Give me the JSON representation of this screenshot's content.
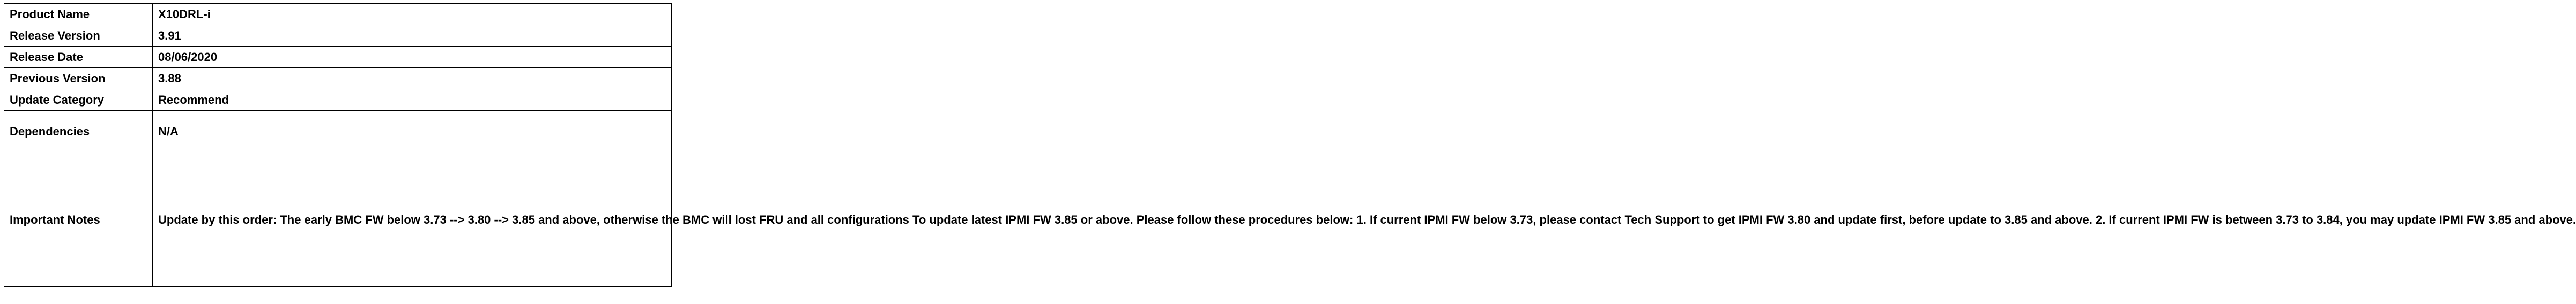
{
  "rows": [
    {
      "label": "Product Name",
      "value": "X10DRL-i"
    },
    {
      "label": "Release Version",
      "value": "3.91"
    },
    {
      "label": "Release Date",
      "value": "08/06/2020"
    },
    {
      "label": "Previous Version",
      "value": "3.88"
    },
    {
      "label": "Update Category",
      "value": "Recommend"
    },
    {
      "label": "Dependencies",
      "value": "N/A"
    },
    {
      "label": "Important Notes",
      "value": "Update by this order: The early BMC FW below 3.73 --> 3.80 --> 3.85 and above, otherwise the BMC will lost FRU and all configurations To update latest IPMI FW 3.85 or above. Please follow these procedures below: 1. If current IPMI FW below 3.73, please contact Tech Support to get IPMI FW 3.80 and update first, before update to 3.85 and above. 2. If current IPMI FW is between 3.73 to 3.84, you may update IPMI FW 3.85 and above."
    }
  ]
}
